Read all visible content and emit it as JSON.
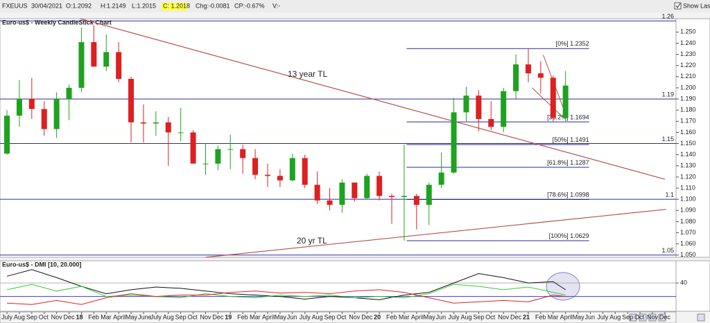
{
  "header": {
    "symbol": "FXEUUS",
    "date": "30/04/2021",
    "open": "O:1.2092",
    "high": "H:1.2149",
    "low": "L:1.2015",
    "close": "C: 1.2018",
    "change": "Chg:-0.0081",
    "change_pct": "CP:-0.67%",
    "volume": "V:-",
    "show_last": "Show Last"
  },
  "chart_data": [
    {
      "type": "candlestick",
      "title": "Euro-us$ - Weekly CandleStick Chart",
      "up_color": "#1fa21f",
      "down_color": "#dd2020",
      "x": [
        0,
        1,
        2,
        3,
        4,
        5,
        6,
        7,
        8,
        9,
        10,
        11,
        12,
        13,
        14,
        15,
        16,
        17,
        18,
        19,
        20,
        21,
        22,
        23,
        24,
        25,
        26,
        27,
        28,
        29,
        30,
        31,
        32,
        33,
        34,
        35,
        36,
        37,
        38,
        39,
        40,
        41,
        42,
        43,
        44,
        45
      ],
      "open": [
        1.141,
        1.175,
        1.19,
        1.181,
        1.163,
        1.19,
        1.2,
        1.241,
        1.219,
        1.232,
        1.208,
        1.169,
        1.168,
        1.169,
        1.16,
        1.16,
        1.132,
        1.132,
        1.145,
        1.145,
        1.137,
        1.122,
        1.121,
        1.117,
        1.137,
        1.113,
        1.099,
        1.095,
        1.115,
        1.101,
        1.121,
        1.103,
        1.102,
        1.103,
        1.095,
        1.113,
        1.124,
        1.178,
        1.193,
        1.172,
        1.165,
        1.197,
        1.221,
        1.213,
        1.209,
        1.173
      ],
      "high": [
        1.18,
        1.207,
        1.209,
        1.188,
        1.196,
        1.203,
        1.254,
        1.256,
        1.248,
        1.241,
        1.21,
        1.185,
        1.179,
        1.174,
        1.182,
        1.162,
        1.15,
        1.148,
        1.158,
        1.149,
        1.145,
        1.132,
        1.127,
        1.141,
        1.14,
        1.125,
        1.11,
        1.118,
        1.115,
        1.123,
        1.125,
        1.105,
        1.149,
        1.105,
        1.115,
        1.142,
        1.191,
        1.201,
        1.198,
        1.188,
        1.2,
        1.23,
        1.235,
        1.224,
        1.211,
        1.215
      ],
      "low": [
        1.14,
        1.165,
        1.172,
        1.157,
        1.155,
        1.171,
        1.196,
        1.22,
        1.215,
        1.205,
        1.151,
        1.151,
        1.157,
        1.13,
        1.152,
        1.132,
        1.122,
        1.126,
        1.127,
        1.123,
        1.118,
        1.111,
        1.111,
        1.116,
        1.11,
        1.096,
        1.09,
        1.088,
        1.098,
        1.1,
        1.099,
        1.078,
        1.063,
        1.073,
        1.077,
        1.11,
        1.123,
        1.17,
        1.161,
        1.162,
        1.16,
        1.19,
        1.205,
        1.195,
        1.17,
        1.17
      ],
      "close": [
        1.175,
        1.19,
        1.181,
        1.163,
        1.19,
        1.2,
        1.241,
        1.219,
        1.232,
        1.208,
        1.169,
        1.168,
        1.169,
        1.16,
        1.16,
        1.132,
        1.132,
        1.145,
        1.145,
        1.137,
        1.122,
        1.121,
        1.117,
        1.137,
        1.113,
        1.099,
        1.095,
        1.115,
        1.101,
        1.121,
        1.103,
        1.102,
        1.103,
        1.095,
        1.113,
        1.124,
        1.178,
        1.193,
        1.172,
        1.165,
        1.197,
        1.221,
        1.213,
        1.209,
        1.173,
        1.202
      ],
      "xlim": [
        -0.56,
        53.9
      ],
      "ylim": [
        1.048,
        1.262
      ],
      "yticks": [
        {
          "value": 1.05,
          "label": "1.050"
        },
        {
          "value": 1.06,
          "label": "1.060"
        },
        {
          "value": 1.07,
          "label": "1.070"
        },
        {
          "value": 1.08,
          "label": "1.080"
        },
        {
          "value": 1.09,
          "label": "1.090"
        },
        {
          "value": 1.1,
          "label": "1.100"
        },
        {
          "value": 1.11,
          "label": "1.110"
        },
        {
          "value": 1.12,
          "label": "1.120"
        },
        {
          "value": 1.13,
          "label": "1.130"
        },
        {
          "value": 1.14,
          "label": "1.140"
        },
        {
          "value": 1.15,
          "label": "1.150"
        },
        {
          "value": 1.16,
          "label": "1.160"
        },
        {
          "value": 1.17,
          "label": "1.170"
        },
        {
          "value": 1.18,
          "label": "1.180"
        },
        {
          "value": 1.19,
          "label": "1.190"
        },
        {
          "value": 1.2,
          "label": "1.200"
        },
        {
          "value": 1.21,
          "label": "1.210"
        },
        {
          "value": 1.22,
          "label": "1.220"
        },
        {
          "value": 1.23,
          "label": "1.230"
        },
        {
          "value": 1.24,
          "label": "1.240"
        },
        {
          "value": 1.25,
          "label": "1.250"
        }
      ],
      "hlines": [
        1.26,
        1.19,
        1.15,
        1.1,
        1.05
      ],
      "hline_color": "#2a2a9a",
      "fib_x": [
        32.2,
        46.9
      ],
      "fib_color": "#2a2a9a",
      "fib_levels": [
        {
          "label": "[0%]",
          "value": 1.2352
        },
        {
          "label": "[38.2%]",
          "value": 1.1694
        },
        {
          "label": "[50%]",
          "value": 1.1491
        },
        {
          "label": "[61.8%]",
          "value": 1.1287
        },
        {
          "label": "[78.6%]",
          "value": 1.0998
        },
        {
          "label": "[100%]",
          "value": 1.0629
        }
      ],
      "trendlines": [
        {
          "label": "13 year TL",
          "x": [
            5.9,
            53
          ],
          "y": [
            1.262,
            1.118
          ]
        },
        {
          "label": "20 yr TL",
          "x": [
            16,
            53.1
          ],
          "y": [
            1.048,
            1.091
          ]
        }
      ],
      "wedge_lines": [
        {
          "x": [
            43.2,
            45
          ],
          "y": [
            1.2295,
            1.1767
          ]
        },
        {
          "x": [
            42.3,
            44.8
          ],
          "y": [
            1.2,
            1.1736
          ]
        }
      ],
      "trend_color": "#b5524a"
    },
    {
      "type": "line",
      "title": "Euro-us$ - DMI [10, 20.000]",
      "xlim": [
        -0.56,
        53.9
      ],
      "ylim": [
        0,
        70
      ],
      "yticks": [
        40
      ],
      "hlines": [
        20,
        40
      ],
      "hline_colors": [
        "#3a3ad0",
        "#b0b0b0"
      ],
      "x": [
        0,
        2,
        4,
        6,
        8,
        10,
        12,
        14,
        16,
        18,
        20,
        22,
        24,
        26,
        28,
        30,
        32,
        34,
        36,
        38,
        40,
        42,
        44,
        45
      ],
      "series": [
        {
          "color": "#111111",
          "values": [
            50,
            60,
            48,
            35,
            24,
            30,
            34,
            32,
            28,
            24,
            22,
            20,
            16,
            20,
            18,
            15,
            22,
            26,
            40,
            54,
            48,
            40,
            42,
            30
          ]
        },
        {
          "color": "#33cc33",
          "values": [
            30,
            38,
            28,
            35,
            20,
            22,
            20,
            18,
            24,
            20,
            18,
            22,
            20,
            22,
            18,
            20,
            18,
            24,
            38,
            35,
            30,
            34,
            26,
            22
          ]
        },
        {
          "color": "#e02020",
          "values": [
            10,
            8,
            14,
            8,
            18,
            24,
            20,
            22,
            22,
            26,
            28,
            25,
            26,
            24,
            28,
            30,
            26,
            18,
            10,
            12,
            14,
            12,
            22,
            20
          ]
        }
      ],
      "xticks": [
        {
          "value": 0,
          "label": "July"
        },
        {
          "value": 1,
          "label": "Aug"
        },
        {
          "value": 2,
          "label": "Sep"
        },
        {
          "value": 3,
          "label": "Oct"
        },
        {
          "value": 4,
          "label": "Nov"
        },
        {
          "value": 5,
          "label": "Dec"
        },
        {
          "value": 6,
          "label": "18"
        },
        {
          "value": 7,
          "label": "Feb"
        },
        {
          "value": 8,
          "label": "Mar"
        },
        {
          "value": 9,
          "label": "April"
        },
        {
          "value": 10,
          "label": "May"
        },
        {
          "value": 11,
          "label": "June"
        },
        {
          "value": 12,
          "label": "July"
        },
        {
          "value": 13,
          "label": "Aug"
        },
        {
          "value": 14,
          "label": "Sep"
        },
        {
          "value": 15,
          "label": "Oct"
        },
        {
          "value": 16,
          "label": "Nov"
        },
        {
          "value": 17,
          "label": "Dec"
        },
        {
          "value": 18,
          "label": "19"
        },
        {
          "value": 19,
          "label": "Feb"
        },
        {
          "value": 20,
          "label": "Mar"
        },
        {
          "value": 21,
          "label": "April"
        },
        {
          "value": 22,
          "label": "May"
        },
        {
          "value": 23,
          "label": "Jun"
        },
        {
          "value": 24,
          "label": "July"
        },
        {
          "value": 25,
          "label": "Aug"
        },
        {
          "value": 26,
          "label": "Sep"
        },
        {
          "value": 27,
          "label": "Oct"
        },
        {
          "value": 28,
          "label": "Nov"
        },
        {
          "value": 29,
          "label": "Dec"
        },
        {
          "value": 30,
          "label": "20"
        },
        {
          "value": 31,
          "label": "Feb"
        },
        {
          "value": 32,
          "label": "Mar"
        },
        {
          "value": 33,
          "label": "April"
        },
        {
          "value": 34,
          "label": "May"
        },
        {
          "value": 35,
          "label": "Jun"
        },
        {
          "value": 36,
          "label": "July"
        },
        {
          "value": 37,
          "label": "Aug"
        },
        {
          "value": 38,
          "label": "Sep"
        },
        {
          "value": 39,
          "label": "Oct"
        },
        {
          "value": 40,
          "label": "Nov"
        },
        {
          "value": 41,
          "label": "Dec"
        },
        {
          "value": 42,
          "label": "21"
        },
        {
          "value": 43,
          "label": "Feb"
        },
        {
          "value": 44,
          "label": "Mar"
        },
        {
          "value": 45,
          "label": "April"
        },
        {
          "value": 46,
          "label": "May"
        },
        {
          "value": 47,
          "label": "Jun"
        },
        {
          "value": 48,
          "label": "July"
        },
        {
          "value": 49,
          "label": "Aug"
        },
        {
          "value": 50,
          "label": "Sep"
        },
        {
          "value": 51,
          "label": "Oct"
        },
        {
          "value": 52,
          "label": "Nov"
        },
        {
          "value": 53,
          "label": "Dec"
        }
      ]
    }
  ]
}
